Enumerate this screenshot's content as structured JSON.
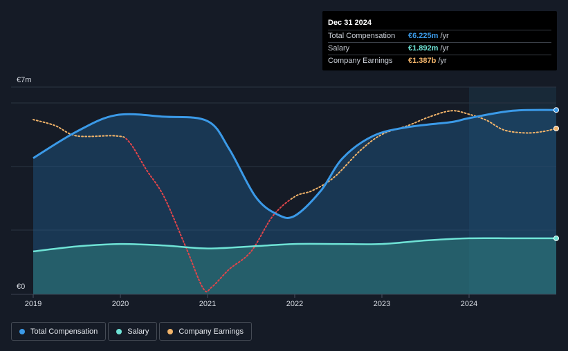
{
  "tooltip": {
    "date": "Dec 31 2024",
    "rows": [
      {
        "label": "Total Compensation",
        "value": "€6.225m",
        "unit": "/yr",
        "color": "#3b9ae8"
      },
      {
        "label": "Salary",
        "value": "€1.892m",
        "unit": "/yr",
        "color": "#6fe3d6"
      },
      {
        "label": "Company Earnings",
        "value": "€1.387b",
        "unit": "/yr",
        "color": "#f2b46a"
      }
    ]
  },
  "legend": [
    {
      "label": "Total Compensation",
      "color": "#3b9ae8"
    },
    {
      "label": "Salary",
      "color": "#6fe3d6"
    },
    {
      "label": "Company Earnings",
      "color": "#f2b46a"
    }
  ],
  "colors": {
    "total": "#3b9ae8",
    "salary": "#6fe3d6",
    "earnings": "#f2b46a",
    "earnings_negative": "#e2454a",
    "background": "#151b26"
  },
  "chart_data": {
    "type": "area",
    "title": "",
    "xlabel": "",
    "ylabel": "",
    "y_top_label": "€7m",
    "y_bottom_label": "€0",
    "ylim": [
      0,
      7
    ],
    "xlim": [
      2019,
      2025
    ],
    "x_ticks": [
      "2019",
      "2020",
      "2021",
      "2022",
      "2023",
      "2024"
    ],
    "series": [
      {
        "name": "Total Compensation",
        "unit": "€m",
        "x": [
          2019.0,
          2019.5,
          2019.95,
          2020.5,
          2021.0,
          2021.25,
          2021.55,
          2021.8,
          2022.0,
          2022.3,
          2022.55,
          2022.9,
          2023.3,
          2023.8,
          2024.0,
          2024.5,
          2025.0
        ],
        "values": [
          4.6,
          5.5,
          6.05,
          6.0,
          5.85,
          4.9,
          3.3,
          2.7,
          2.65,
          3.5,
          4.6,
          5.35,
          5.65,
          5.82,
          5.95,
          6.2,
          6.225
        ]
      },
      {
        "name": "Salary",
        "unit": "€m",
        "x": [
          2019.0,
          2019.5,
          2020.0,
          2020.5,
          2021.0,
          2021.5,
          2022.0,
          2022.5,
          2023.0,
          2023.5,
          2024.0,
          2024.5,
          2025.0
        ],
        "values": [
          1.45,
          1.62,
          1.7,
          1.65,
          1.55,
          1.62,
          1.7,
          1.7,
          1.7,
          1.82,
          1.892,
          1.892,
          1.892
        ]
      },
      {
        "name": "Company Earnings",
        "unit": "€b (scaled)",
        "x": [
          2019.0,
          2019.25,
          2019.5,
          2019.95,
          2020.1,
          2020.3,
          2020.5,
          2020.75,
          2020.95,
          2021.05,
          2021.25,
          2021.5,
          2021.75,
          2022.0,
          2022.2,
          2022.45,
          2022.75,
          2023.0,
          2023.3,
          2023.55,
          2023.8,
          2024.0,
          2024.2,
          2024.4,
          2024.65,
          2024.85,
          2025.0
        ],
        "values": [
          5.9,
          5.7,
          5.35,
          5.35,
          5.15,
          4.2,
          3.3,
          1.6,
          0.2,
          0.25,
          0.85,
          1.45,
          2.65,
          3.3,
          3.5,
          3.95,
          4.85,
          5.4,
          5.7,
          6.0,
          6.2,
          6.08,
          5.88,
          5.55,
          5.45,
          5.5,
          5.6
        ]
      }
    ],
    "highlight_from": 2024.0,
    "negative_segment": {
      "from": 2020.05,
      "to": 2021.95
    }
  }
}
